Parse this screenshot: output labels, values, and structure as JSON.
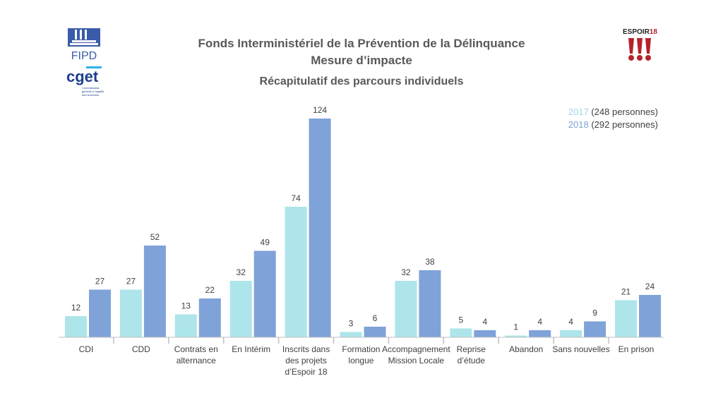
{
  "header": {
    "title": "Fonds Interministériel de la Prévention de la Délinquance",
    "subtitle": "Mesure d’impacte",
    "logos": [
      "FIPD",
      "cget",
      "ESPOIR18"
    ]
  },
  "chart_data": {
    "type": "bar",
    "title": "Récapitulatif des parcours individuels",
    "categories": [
      "CDI",
      "CDD",
      "Contrats en alternance",
      "En Intérim",
      "Inscrits dans des projets d’Espoir 18",
      "Formation longue",
      "Accompagnement Mission Locale",
      "Reprise d’étude",
      "Abandon",
      "Sans nouvelles",
      "En prison"
    ],
    "category_lines": [
      [
        "CDI"
      ],
      [
        "CDD"
      ],
      [
        "Contrats en",
        "alternance"
      ],
      [
        "En Intérim"
      ],
      [
        "Inscrits dans",
        "des projets",
        "d’Espoir 18"
      ],
      [
        "Formation",
        "longue"
      ],
      [
        "Accompagnement",
        "Mission Locale"
      ],
      [
        "Reprise",
        "d’étude"
      ],
      [
        "Abandon"
      ],
      [
        "Sans nouvelles"
      ],
      [
        "En prison"
      ]
    ],
    "series": [
      {
        "name": "2017",
        "legend_suffix": " (248 personnes)",
        "color": "#ADE5EB",
        "values": [
          12,
          27,
          13,
          32,
          74,
          3,
          32,
          5,
          1,
          4,
          21
        ]
      },
      {
        "name": "2018",
        "legend_suffix": " (292 personnes)",
        "color": "#7FA2D9",
        "values": [
          27,
          52,
          22,
          49,
          124,
          6,
          38,
          4,
          4,
          9,
          24
        ]
      }
    ],
    "ylim": [
      0,
      124
    ],
    "grid": false,
    "legend_placement": "top-right"
  }
}
